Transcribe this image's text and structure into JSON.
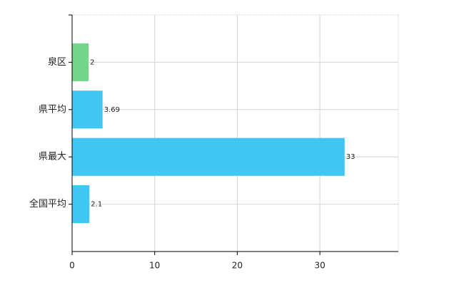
{
  "chart_data": {
    "type": "hbar",
    "categories": [
      "泉区",
      "県平均",
      "県最大",
      "全国平均"
    ],
    "values": [
      2,
      3.69,
      33,
      2.1
    ],
    "colors": [
      "#72d68a",
      "#3fc6f3",
      "#3fc6f3",
      "#3fc6f3"
    ],
    "xlim": [
      0,
      39.5
    ],
    "xticks": [
      0,
      10,
      20,
      30
    ],
    "grid": true
  }
}
